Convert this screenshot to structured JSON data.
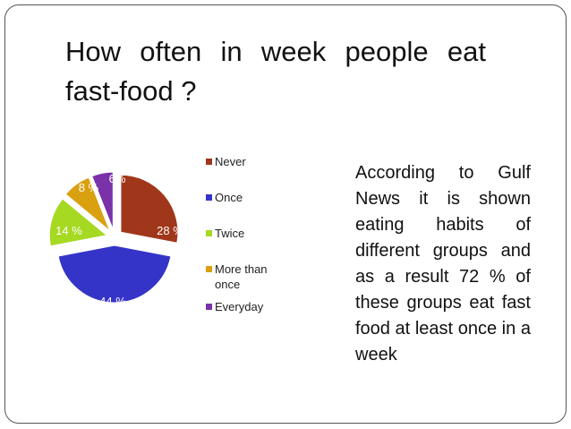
{
  "slide": {
    "title": "How  often  in  week  people eat fast-food ?",
    "body": "According to Gulf News it is shown eating habits of different groups and as a result 72 % of these groups eat fast food at least once in a week"
  },
  "chart_data": {
    "type": "pie",
    "title": "",
    "legend_position": "right",
    "categories": [
      "Never",
      "Once",
      "Twice",
      "More than once",
      "Everyday"
    ],
    "values": [
      28,
      44,
      14,
      8,
      6
    ],
    "data_labels": [
      "28 %",
      "44 %",
      "14 %",
      "8 %",
      "6%"
    ],
    "colors": [
      "#a0371a",
      "#3434c8",
      "#a6d922",
      "#d9a010",
      "#7a32a8"
    ]
  }
}
